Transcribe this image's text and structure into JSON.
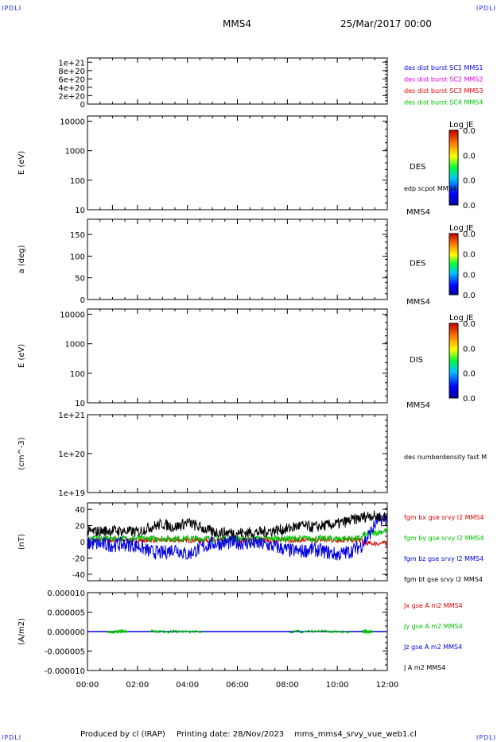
{
  "corners": {
    "tl": "IPDLI",
    "tr": "IPDLI",
    "bl": "IPDLI",
    "br": "IPDLI"
  },
  "header": {
    "spacecraft": "MMS4",
    "date": "25/Mar/2017 00:00"
  },
  "footer": {
    "produced": "Produced by cl (IRAP)",
    "printing": "Printing date: 28/Nov/2023",
    "filename": "mms_mms4_srvy_vue_web1.cl"
  },
  "xaxis": {
    "range_hours": [
      0,
      12
    ],
    "ticks": [
      "00:00",
      "02:00",
      "04:00",
      "06:00",
      "08:00",
      "10:00",
      "12:00"
    ]
  },
  "colors": {
    "red": "#e00000",
    "green": "#00c000",
    "blue": "#0000e0",
    "magenta": "#e000e0",
    "black": "#000000"
  },
  "chart_data": [
    {
      "type": "line",
      "panel": "dist",
      "yticks": [
        "1e+21",
        "8e+20",
        "6e+20",
        "4e+20",
        "2e+20",
        "0"
      ],
      "ylim": [
        0,
        1.1e+21
      ],
      "legend": [
        {
          "label": "des dist burst SC1 MMS1",
          "color": "#0000e0"
        },
        {
          "label": "des dist burst SC2 MMS2",
          "color": "#e000e0"
        },
        {
          "label": "des dist burst SC3 MMS3",
          "color": "#e00000"
        },
        {
          "label": "des dist burst SC4 MMS4",
          "color": "#00c000"
        }
      ]
    },
    {
      "type": "heatmap",
      "panel": "des_energy",
      "ylabel": "E (eV)",
      "yticks": [
        "10000",
        "1000",
        "100",
        "10"
      ],
      "ylim": [
        10,
        15000
      ],
      "log": true,
      "side_label": "DES",
      "bottom_label": "MMS4",
      "overlay": "edp scpot MMS4",
      "colorbar": {
        "title": "Log JE",
        "ticks": [
          "0.0",
          "0.0",
          "0.0",
          "0.0"
        ]
      }
    },
    {
      "type": "heatmap",
      "panel": "des_pitch",
      "ylabel": "a (deg)",
      "yticks": [
        "150",
        "100",
        "50",
        "0"
      ],
      "ylim": [
        0,
        185
      ],
      "side_label": "DES",
      "bottom_label": "MMS4",
      "colorbar": {
        "title": "Log JE",
        "ticks": [
          "0.0",
          "0.0",
          "0.0",
          "0.0"
        ]
      }
    },
    {
      "type": "heatmap",
      "panel": "dis_energy",
      "ylabel": "E (eV)",
      "yticks": [
        "10000",
        "1000",
        "100",
        "10"
      ],
      "ylim": [
        10,
        15000
      ],
      "log": true,
      "side_label": "DIS",
      "bottom_label": "MMS4",
      "colorbar": {
        "title": "Log JE",
        "ticks": [
          "0.0",
          "0.0",
          "0.0",
          "0.0"
        ]
      }
    },
    {
      "type": "line",
      "panel": "density",
      "ylabel": "(cm^-3)",
      "yticks": [
        "1e+21",
        "1e+20",
        "1e+19"
      ],
      "ylim": [
        1e+19,
        1e+21
      ],
      "log": true,
      "legend": [
        {
          "label": "des numberdensity fast M",
          "color": "#000000"
        }
      ]
    },
    {
      "type": "line",
      "panel": "fgm",
      "ylabel": "(nT)",
      "yticks": [
        "40",
        "20",
        "0",
        "-20",
        "-40"
      ],
      "ylim": [
        -48,
        48
      ],
      "legend": [
        {
          "label": "fgm bx gse srvy l2 MMS4",
          "color": "#e00000"
        },
        {
          "label": "fgm by gse srvy l2 MMS4",
          "color": "#00c000"
        },
        {
          "label": "fgm bz gse srvy l2 MMS4",
          "color": "#0000e0"
        },
        {
          "label": "fgm bt gse srvy l2 MMS4",
          "color": "#000000"
        }
      ],
      "bt_profile": {
        "hours": [
          0,
          0.5,
          1,
          1.5,
          2,
          2.5,
          3,
          3.5,
          4,
          4.5,
          5,
          6,
          7,
          7.5,
          8,
          8.5,
          9,
          9.5,
          10,
          10.5,
          11,
          11.3,
          11.6,
          12
        ],
        "values": [
          12,
          13,
          14,
          13,
          12,
          18,
          22,
          18,
          24,
          18,
          12,
          11,
          12,
          14,
          16,
          20,
          18,
          20,
          22,
          26,
          30,
          33,
          31,
          30
        ]
      },
      "bz_profile": {
        "hours": [
          0,
          0.5,
          1,
          1.5,
          2,
          2.5,
          3,
          3.5,
          4,
          4.5,
          5,
          6,
          7,
          7.5,
          8,
          8.5,
          9,
          9.5,
          10,
          10.5,
          11,
          11.3,
          11.6,
          12
        ],
        "values": [
          -2,
          -3,
          -4,
          -3,
          -5,
          -12,
          -14,
          -8,
          -16,
          -8,
          -2,
          -1,
          -3,
          -6,
          -10,
          -12,
          -9,
          -12,
          -16,
          -12,
          -4,
          10,
          26,
          30
        ]
      }
    },
    {
      "type": "line",
      "panel": "current",
      "ylabel": "(A/m2)",
      "yticks": [
        "0.000010",
        "0.000005",
        "0.000000",
        "-0.000005",
        "-0.000010"
      ],
      "ylim": [
        -1e-05,
        1e-05
      ],
      "legend": [
        {
          "label": "Jx gse A m2 MMS4",
          "color": "#e00000"
        },
        {
          "label": "Jy gse A m2 MMS4",
          "color": "#00c000"
        },
        {
          "label": "Jz gse A m2 MMS4",
          "color": "#0000e0"
        },
        {
          "label": "J A m2 MMS4",
          "color": "#000000"
        }
      ]
    }
  ]
}
